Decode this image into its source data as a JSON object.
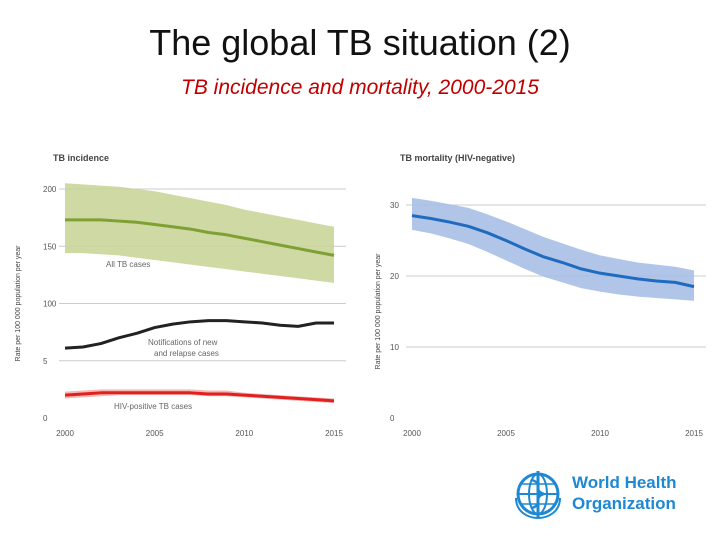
{
  "slide": {
    "title": "The global TB situation (2)",
    "subtitle": "TB incidence and mortality, 2000-2015"
  },
  "logo": {
    "line1": "World Health",
    "line2": "Organization"
  },
  "chart_data": [
    {
      "type": "line",
      "title": "TB incidence",
      "ylabel": "Rate per 100 000 population per year",
      "xlim": [
        2000,
        2015
      ],
      "ylim": [
        0,
        200
      ],
      "x_ticks": [
        "2000",
        "2005",
        "2010",
        "2015"
      ],
      "y_ticks": [
        "0",
        "5",
        "100",
        "150",
        "200"
      ],
      "grid": true,
      "series": [
        {
          "name": "All TB cases",
          "color": "#7fa033",
          "band_color": "#c9d59a",
          "x": [
            2000,
            2001,
            2002,
            2003,
            2004,
            2005,
            2006,
            2007,
            2008,
            2009,
            2010,
            2011,
            2012,
            2013,
            2014,
            2015
          ],
          "values": [
            173,
            173,
            173,
            172,
            171,
            169,
            167,
            165,
            162,
            160,
            157,
            154,
            151,
            148,
            145,
            142
          ],
          "lower": [
            144,
            144,
            143,
            142,
            140,
            138,
            136,
            134,
            132,
            130,
            128,
            126,
            124,
            122,
            120,
            118
          ],
          "upper": [
            205,
            204,
            203,
            202,
            200,
            198,
            195,
            192,
            189,
            186,
            182,
            179,
            176,
            173,
            170,
            167
          ]
        },
        {
          "name": "Notifications of new and relapse cases",
          "color": "#222222",
          "x": [
            2000,
            2001,
            2002,
            2003,
            2004,
            2005,
            2006,
            2007,
            2008,
            2009,
            2010,
            2011,
            2012,
            2013,
            2014,
            2015
          ],
          "values": [
            61,
            62,
            65,
            70,
            74,
            79,
            82,
            84,
            85,
            85,
            84,
            83,
            81,
            80,
            83,
            83
          ]
        },
        {
          "name": "HIV-positive TB cases",
          "color": "#e02020",
          "band_color": "#f4b0aa",
          "x": [
            2000,
            2001,
            2002,
            2003,
            2004,
            2005,
            2006,
            2007,
            2008,
            2009,
            2010,
            2011,
            2012,
            2013,
            2014,
            2015
          ],
          "values": [
            20,
            21,
            22,
            22,
            22,
            22,
            22,
            22,
            21,
            21,
            20,
            19,
            18,
            17,
            16,
            15
          ],
          "lower": [
            17,
            18,
            19,
            20,
            20,
            20,
            20,
            20,
            19,
            19,
            18,
            17,
            16,
            15,
            14,
            13
          ],
          "upper": [
            23,
            24,
            25,
            25,
            25,
            25,
            25,
            25,
            24,
            24,
            22,
            21,
            20,
            19,
            18,
            17
          ]
        }
      ],
      "annotations": [
        {
          "text": "All TB cases",
          "series": "All TB cases"
        },
        {
          "text": "Notifications of new",
          "text2": "and relapse cases",
          "series": "Notifications of new and relapse cases"
        },
        {
          "text": "HIV-positive TB cases",
          "series": "HIV-positive TB cases"
        }
      ]
    },
    {
      "type": "line",
      "title": "TB mortality (HIV-negative)",
      "ylabel": "Rate per 100 000 population per year",
      "xlim": [
        2000,
        2015
      ],
      "ylim": [
        0,
        30
      ],
      "x_ticks": [
        "2000",
        "2005",
        "2010",
        "2015"
      ],
      "y_ticks": [
        "0",
        "10",
        "20",
        "30"
      ],
      "grid": true,
      "series": [
        {
          "color": "#1f6bbf",
          "band_color": "#a9bfe6",
          "x": [
            2000,
            2001,
            2002,
            2003,
            2004,
            2005,
            2006,
            2007,
            2008,
            2009,
            2010,
            2011,
            2012,
            2013,
            2014,
            2015
          ],
          "values": [
            28.5,
            28.1,
            27.6,
            27.0,
            26.1,
            25.0,
            23.8,
            22.7,
            21.9,
            21.0,
            20.4,
            20.0,
            19.6,
            19.3,
            19.1,
            18.5
          ],
          "lower": [
            26.5,
            26.0,
            25.3,
            24.5,
            23.4,
            22.2,
            21.0,
            19.9,
            19.1,
            18.3,
            17.8,
            17.4,
            17.1,
            16.9,
            16.7,
            16.5
          ],
          "upper": [
            31.0,
            30.6,
            30.1,
            29.6,
            28.7,
            27.7,
            26.6,
            25.5,
            24.6,
            23.7,
            22.9,
            22.4,
            21.9,
            21.6,
            21.3,
            20.8
          ]
        }
      ]
    }
  ]
}
